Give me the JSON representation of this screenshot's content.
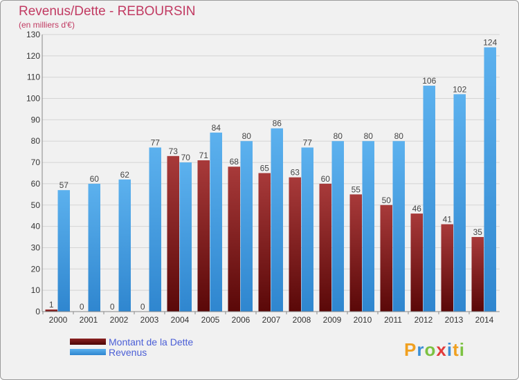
{
  "chart_data": {
    "type": "bar",
    "title": "Revenus/Dette - REBOURSIN",
    "subtitle": "(en milliers d'€)",
    "categories": [
      "2000",
      "2001",
      "2002",
      "2003",
      "2004",
      "2005",
      "2006",
      "2007",
      "2008",
      "2009",
      "2010",
      "2011",
      "2012",
      "2013",
      "2014"
    ],
    "series": [
      {
        "name": "Montant de la Dette",
        "color": "#8b2020",
        "values": [
          1,
          0,
          0,
          0,
          73,
          71,
          68,
          65,
          63,
          60,
          55,
          50,
          46,
          41,
          35
        ]
      },
      {
        "name": "Revenus",
        "color": "#4fa3e6",
        "values": [
          57,
          60,
          62,
          77,
          70,
          84,
          80,
          86,
          77,
          80,
          80,
          80,
          106,
          102,
          124
        ]
      }
    ],
    "ylim": [
      0,
      130
    ],
    "yticks": [
      0,
      10,
      20,
      30,
      40,
      50,
      60,
      70,
      80,
      90,
      100,
      110,
      120,
      130
    ],
    "grid": true,
    "xlabel": "",
    "ylabel": "",
    "legend_position": "bottom-left"
  },
  "brand": {
    "letters": [
      "P",
      "r",
      "o",
      "x",
      "i",
      "t",
      "i"
    ],
    "colors": [
      "#f0a020",
      "#3b8fd6",
      "#7cc242",
      "#e23b3b",
      "#3b8fd6",
      "#f0a020",
      "#7cc242"
    ]
  }
}
